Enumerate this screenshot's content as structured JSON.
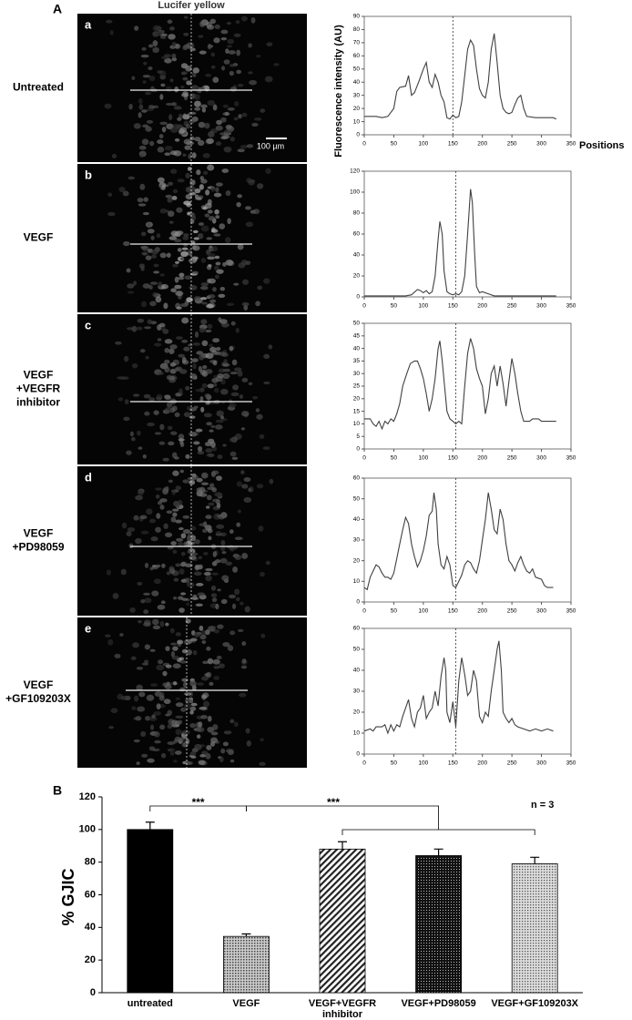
{
  "figure": {
    "panel_labels": [
      "A",
      "B"
    ],
    "image_title": "Lucifer yellow",
    "scale_bar": "100 µm",
    "rows": [
      {
        "letter": "a",
        "label": [
          "Untreated"
        ]
      },
      {
        "letter": "b",
        "label": [
          "VEGF"
        ]
      },
      {
        "letter": "c",
        "label": [
          "VEGF",
          "+VEGFR",
          "inhibitor"
        ]
      },
      {
        "letter": "d",
        "label": [
          "VEGF",
          "+PD98059"
        ]
      },
      {
        "letter": "e",
        "label": [
          "VEGF",
          "+GF109203X"
        ]
      }
    ]
  },
  "chart_data": [
    {
      "type": "line",
      "ylabel": "Fluorescence intensity (AU)",
      "xlabel": "Positions",
      "color": "#404040",
      "vline": 150,
      "xlim": [
        0,
        350
      ],
      "xticks": [
        0,
        50,
        100,
        150,
        200,
        250,
        300,
        350
      ],
      "ylim": [
        0,
        90
      ],
      "yticks": [
        0,
        10,
        20,
        30,
        40,
        50,
        60,
        70,
        80,
        90
      ],
      "x": [
        0,
        20,
        30,
        40,
        50,
        55,
        60,
        70,
        75,
        80,
        85,
        92,
        100,
        105,
        110,
        115,
        120,
        125,
        130,
        135,
        140,
        145,
        150,
        155,
        160,
        165,
        170,
        175,
        180,
        185,
        190,
        195,
        200,
        205,
        210,
        215,
        220,
        225,
        230,
        235,
        240,
        245,
        250,
        255,
        260,
        265,
        270,
        275,
        290,
        320,
        325
      ],
      "values": [
        14,
        14,
        13,
        14,
        20,
        33,
        36,
        37,
        45,
        30,
        32,
        40,
        50,
        55,
        40,
        36,
        46,
        40,
        30,
        25,
        13,
        12,
        15,
        13,
        14,
        25,
        45,
        65,
        72,
        68,
        50,
        35,
        30,
        28,
        40,
        65,
        77,
        55,
        30,
        20,
        17,
        16,
        17,
        23,
        28,
        30,
        20,
        14,
        13,
        13,
        12
      ]
    },
    {
      "type": "line",
      "color": "#404040",
      "vline": 155,
      "xlim": [
        0,
        350
      ],
      "xticks": [
        0,
        50,
        100,
        150,
        200,
        250,
        300,
        350
      ],
      "ylim": [
        0,
        120
      ],
      "yticks": [
        0,
        20,
        40,
        60,
        80,
        100,
        120
      ],
      "x": [
        0,
        70,
        80,
        90,
        95,
        100,
        105,
        110,
        115,
        120,
        125,
        128,
        132,
        135,
        140,
        145,
        150,
        155,
        160,
        165,
        170,
        175,
        180,
        183,
        187,
        190,
        195,
        200,
        210,
        220,
        260,
        325
      ],
      "values": [
        1,
        1,
        2,
        7,
        6,
        4,
        6,
        3,
        5,
        20,
        55,
        72,
        60,
        25,
        5,
        3,
        2,
        3,
        2,
        5,
        20,
        60,
        103,
        90,
        40,
        10,
        4,
        5,
        3,
        1,
        1,
        1
      ]
    },
    {
      "type": "line",
      "color": "#404040",
      "vline": 155,
      "xlim": [
        0,
        350
      ],
      "xticks": [
        0,
        50,
        100,
        150,
        200,
        250,
        300,
        350
      ],
      "ylim": [
        0,
        50
      ],
      "yticks": [
        0,
        5,
        10,
        15,
        20,
        25,
        30,
        35,
        40,
        45,
        50
      ],
      "x": [
        0,
        10,
        15,
        20,
        25,
        30,
        35,
        40,
        45,
        50,
        55,
        60,
        65,
        72,
        78,
        85,
        90,
        95,
        100,
        105,
        110,
        115,
        120,
        125,
        128,
        132,
        136,
        140,
        145,
        150,
        155,
        160,
        165,
        170,
        175,
        180,
        185,
        190,
        195,
        200,
        205,
        210,
        215,
        220,
        225,
        230,
        235,
        240,
        245,
        250,
        255,
        260,
        265,
        270,
        280,
        285,
        295,
        300,
        325
      ],
      "values": [
        12,
        12,
        10,
        9,
        11,
        8,
        11,
        10,
        12,
        11,
        14,
        18,
        25,
        30,
        34,
        35,
        35,
        32,
        28,
        22,
        15,
        20,
        28,
        40,
        43,
        35,
        25,
        15,
        12,
        11,
        10,
        11,
        10,
        25,
        38,
        44,
        40,
        32,
        28,
        25,
        14,
        20,
        30,
        33,
        25,
        33,
        26,
        17,
        27,
        36,
        30,
        22,
        15,
        11,
        11,
        12,
        12,
        11,
        11
      ]
    },
    {
      "type": "line",
      "color": "#404040",
      "vline": 155,
      "xlim": [
        0,
        350
      ],
      "xticks": [
        0,
        50,
        100,
        150,
        200,
        250,
        300,
        350
      ],
      "ylim": [
        0,
        60
      ],
      "yticks": [
        0,
        10,
        20,
        30,
        40,
        50,
        60
      ],
      "x": [
        0,
        5,
        10,
        15,
        20,
        25,
        30,
        35,
        40,
        45,
        50,
        55,
        60,
        65,
        70,
        75,
        80,
        85,
        90,
        95,
        100,
        105,
        110,
        115,
        118,
        122,
        125,
        130,
        135,
        140,
        145,
        150,
        155,
        160,
        165,
        170,
        175,
        180,
        185,
        190,
        195,
        200,
        205,
        210,
        215,
        220,
        225,
        230,
        235,
        240,
        245,
        250,
        255,
        260,
        265,
        270,
        275,
        280,
        285,
        290,
        300,
        305,
        310,
        320
      ],
      "values": [
        7,
        6,
        12,
        15,
        18,
        17,
        14,
        12,
        12,
        11,
        14,
        21,
        28,
        35,
        41,
        38,
        28,
        22,
        17,
        20,
        25,
        32,
        42,
        44,
        53,
        45,
        28,
        18,
        16,
        22,
        18,
        8,
        7,
        10,
        13,
        18,
        20,
        19,
        16,
        14,
        20,
        30,
        40,
        53,
        45,
        35,
        33,
        45,
        40,
        28,
        20,
        18,
        15,
        19,
        22,
        18,
        15,
        14,
        16,
        12,
        11,
        8,
        7,
        7
      ]
    },
    {
      "type": "line",
      "color": "#404040",
      "vline": 155,
      "xlim": [
        0,
        350
      ],
      "xticks": [
        0,
        50,
        100,
        150,
        200,
        250,
        300,
        350
      ],
      "ylim": [
        0,
        60
      ],
      "yticks": [
        0,
        10,
        20,
        30,
        40,
        50,
        60
      ],
      "x": [
        0,
        10,
        15,
        20,
        30,
        35,
        40,
        45,
        50,
        55,
        60,
        65,
        70,
        75,
        80,
        85,
        90,
        95,
        100,
        105,
        110,
        115,
        120,
        125,
        130,
        135,
        138,
        140,
        145,
        150,
        155,
        160,
        165,
        170,
        175,
        180,
        185,
        190,
        195,
        200,
        205,
        210,
        215,
        220,
        225,
        228,
        232,
        235,
        240,
        245,
        250,
        255,
        260,
        270,
        280,
        290,
        300,
        310,
        320
      ],
      "values": [
        11,
        12,
        11,
        13,
        13,
        14,
        10,
        14,
        11,
        14,
        13,
        18,
        22,
        26,
        17,
        13,
        20,
        22,
        28,
        17,
        20,
        22,
        30,
        23,
        37,
        46,
        40,
        20,
        15,
        25,
        13,
        35,
        46,
        38,
        28,
        30,
        40,
        35,
        18,
        15,
        20,
        18,
        30,
        40,
        50,
        54,
        40,
        20,
        17,
        15,
        17,
        14,
        13,
        12,
        11,
        12,
        11,
        12,
        11
      ]
    },
    {
      "type": "bar",
      "ylabel": "% GJIC",
      "n_label": "n = 3",
      "annotations": [
        "***",
        "***"
      ],
      "categories": [
        "untreated",
        "VEGF",
        "VEGF+VEGFR inhibitor",
        "VEGF+PD98059",
        "VEGF+GF109203X"
      ],
      "values": [
        100,
        34.5,
        88,
        84,
        79
      ],
      "errors": [
        4.5,
        1.5,
        4.5,
        4,
        4
      ],
      "ylim": [
        0,
        120
      ],
      "yticks": [
        0,
        20,
        40,
        60,
        80,
        100,
        120
      ]
    }
  ]
}
